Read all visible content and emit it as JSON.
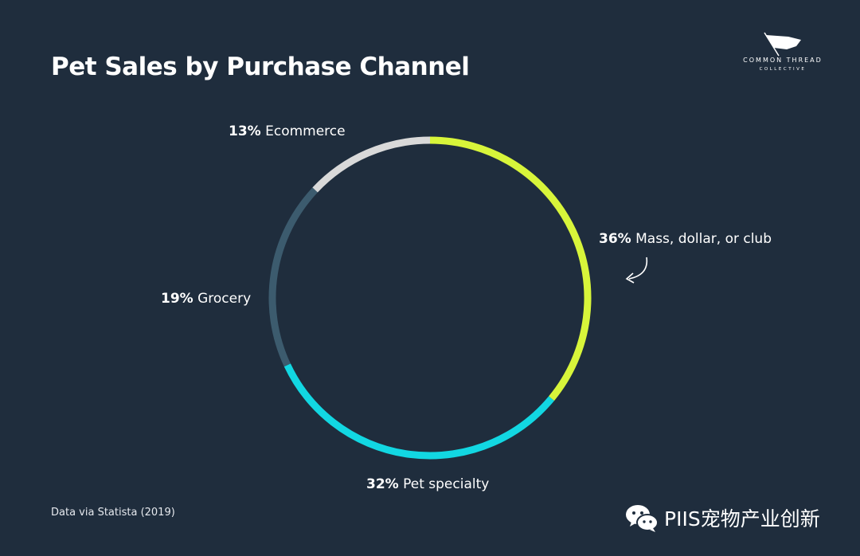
{
  "chart_data": {
    "type": "pie",
    "title": "Pet Sales by Purchase Channel",
    "slices": [
      {
        "label": "Mass, dollar, or club",
        "value": 36,
        "pct_text": "36%",
        "color": "#d8f53a"
      },
      {
        "label": "Pet specialty",
        "value": 32,
        "pct_text": "32%",
        "color": "#12d7e2"
      },
      {
        "label": "Grocery",
        "value": 19,
        "pct_text": "19%",
        "color": "#3c5b6e"
      },
      {
        "label": "Ecommerce",
        "value": 13,
        "pct_text": "13%",
        "color": "#d9d9d9"
      }
    ],
    "style": "donut-ring",
    "start_angle": "12 o'clock",
    "direction": "clockwise",
    "source": "Data via Statista (2019)"
  },
  "branding": {
    "logo_line1": "COMMON THREAD",
    "logo_line2": "COLLECTIVE",
    "watermark": "PIIS宠物产业创新"
  },
  "colors": {
    "background": "#1f2d3d",
    "text": "#ffffff"
  }
}
